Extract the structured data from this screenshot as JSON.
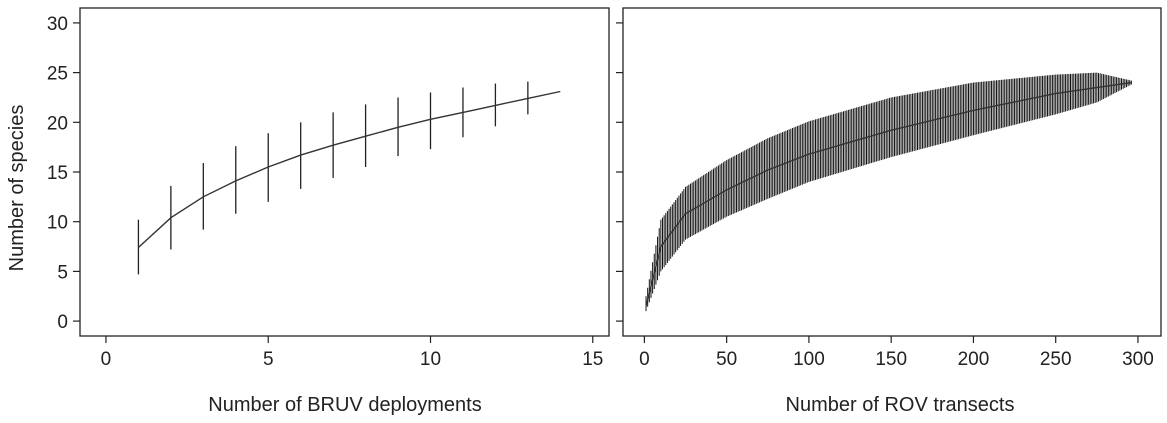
{
  "chart_data": [
    {
      "type": "line",
      "title": "",
      "xlabel": "Number of BRUV deployments",
      "ylabel": "Number of species",
      "xlim": [
        -0.8,
        15.5
      ],
      "ylim": [
        -1.5,
        31.5
      ],
      "xticks": [
        0,
        5,
        10,
        15
      ],
      "yticks": [
        0,
        5,
        10,
        15,
        20,
        25,
        30
      ],
      "grid": false,
      "x": [
        1,
        2,
        3,
        4,
        5,
        6,
        7,
        8,
        9,
        10,
        11,
        12,
        13,
        14
      ],
      "series": [
        {
          "values": [
            7.4,
            10.4,
            12.5,
            14.1,
            15.5,
            16.7,
            17.7,
            18.6,
            19.5,
            20.3,
            21.0,
            21.7,
            22.4,
            23.1
          ],
          "error_low": [
            4.7,
            7.2,
            9.2,
            10.8,
            12.0,
            13.3,
            14.4,
            15.5,
            16.6,
            17.3,
            18.5,
            19.6,
            20.8,
            null
          ],
          "error_high": [
            10.2,
            13.6,
            15.9,
            17.6,
            18.9,
            20.0,
            21.0,
            21.8,
            22.5,
            23.0,
            23.5,
            23.9,
            24.1,
            null
          ]
        }
      ]
    },
    {
      "type": "line",
      "title": "",
      "xlabel": "Number of ROV transects",
      "ylabel": "",
      "xlim": [
        -13,
        314
      ],
      "ylim": [
        -1.5,
        31.5
      ],
      "xticks": [
        0,
        50,
        100,
        150,
        200,
        250,
        300
      ],
      "yticks": [
        0,
        5,
        10,
        15,
        20,
        25,
        30
      ],
      "y_tick_labels_shown": false,
      "grid": false,
      "x_range": [
        1,
        296
      ],
      "x_step": 1,
      "series": [
        {
          "mean_samples": {
            "x": [
              1,
              10,
              25,
              50,
              75,
              100,
              150,
              200,
              250,
              296
            ],
            "y": [
              1.5,
              7.5,
              10.8,
              13.2,
              15.2,
              16.8,
              19.2,
              21.2,
              22.9,
              24.0
            ]
          },
          "upper_samples": {
            "x": [
              1,
              10,
              25,
              50,
              75,
              100,
              150,
              200,
              250,
              275,
              296
            ],
            "y": [
              2.5,
              10.2,
              13.5,
              16.2,
              18.4,
              20.1,
              22.5,
              24.0,
              24.8,
              25.0,
              24.2
            ]
          },
          "lower_samples": {
            "x": [
              1,
              10,
              25,
              50,
              75,
              100,
              150,
              200,
              250,
              275,
              296
            ],
            "y": [
              1.0,
              5.0,
              8.2,
              10.5,
              12.3,
              14.0,
              16.5,
              18.7,
              20.8,
              22.0,
              23.8
            ]
          }
        }
      ]
    }
  ]
}
